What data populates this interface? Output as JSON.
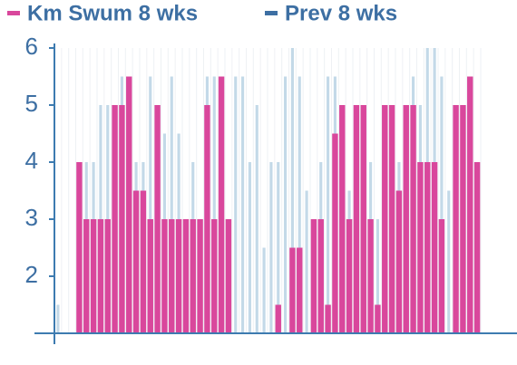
{
  "chart_data": {
    "type": "bar",
    "categories": [
      null,
      null,
      null,
      null,
      null,
      null,
      null,
      null,
      null,
      null,
      null,
      null,
      null,
      null,
      null,
      null,
      null,
      null,
      null,
      null,
      null,
      null,
      null,
      null,
      null,
      null,
      null,
      null,
      null,
      null,
      null,
      null,
      null,
      null,
      null,
      null,
      null,
      null,
      null,
      null,
      null,
      null,
      null,
      null,
      null,
      null,
      null,
      null,
      null,
      null,
      null,
      null,
      null,
      null,
      null,
      null,
      null,
      null,
      null,
      null
    ],
    "series": [
      {
        "name": "Km Swum 8 wks",
        "color": "#d9479c",
        "values": [
          null,
          null,
          null,
          4,
          3,
          3,
          3,
          3,
          5,
          5,
          5.5,
          3.5,
          3.5,
          3,
          5,
          3,
          3,
          3,
          3,
          3,
          3,
          5,
          3,
          5.5,
          3,
          null,
          null,
          null,
          null,
          null,
          null,
          1.5,
          null,
          2.5,
          2.5,
          null,
          3,
          3,
          1.5,
          4.5,
          5,
          3,
          5,
          5,
          3,
          1.5,
          5,
          5,
          3.5,
          5,
          5,
          4,
          4,
          4,
          3,
          null,
          5,
          5,
          5.5,
          4
        ]
      },
      {
        "name": "Prev 8 wks",
        "color": "#c3d9e8",
        "values": [
          1.5,
          null,
          null,
          3,
          4,
          4,
          5,
          5,
          3,
          5.5,
          4,
          4,
          4,
          5.5,
          3,
          4.5,
          5.5,
          4.5,
          3,
          4,
          3,
          5.5,
          5.5,
          4.5,
          3,
          5.5,
          5.5,
          4,
          5,
          2.5,
          4,
          4,
          5.5,
          6,
          5.5,
          3.5,
          3,
          4,
          5.5,
          5.5,
          4,
          3.5,
          3.5,
          4,
          4,
          3,
          4,
          5,
          4,
          5,
          5.5,
          5,
          6,
          6,
          5.5,
          3.5,
          3,
          4,
          4,
          3
        ]
      }
    ],
    "ylim": [
      1,
      6
    ],
    "yticks": [
      2,
      3,
      4,
      5,
      6
    ]
  }
}
